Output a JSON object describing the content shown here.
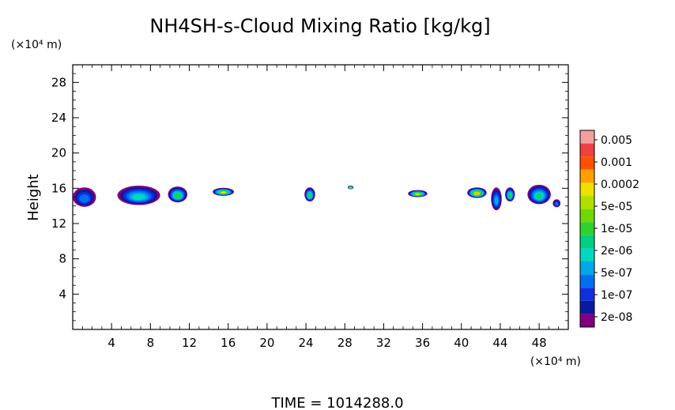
{
  "chart_data": {
    "type": "heatmap",
    "title": "NH4SH-s-Cloud Mixing Ratio [kg/kg]",
    "ylabel": "Height",
    "y_unit": "(×10⁴ m)",
    "x_unit": "(×10⁴ m)",
    "xlim": [
      0,
      51
    ],
    "ylim": [
      0,
      30
    ],
    "x_ticks": [
      4,
      8,
      12,
      16,
      20,
      24,
      28,
      32,
      36,
      40,
      44,
      48
    ],
    "y_ticks": [
      4,
      8,
      12,
      16,
      20,
      24,
      28
    ],
    "grid": false,
    "legend_position": "right",
    "colorbar": {
      "labels": [
        "0.005",
        "0.001",
        "0.0002",
        "5e-05",
        "1e-05",
        "2e-06",
        "5e-07",
        "1e-07",
        "2e-08"
      ],
      "colors": [
        "#f4a0a0",
        "#f04040",
        "#ff5000",
        "#ffa000",
        "#f0e000",
        "#b0e000",
        "#70d800",
        "#30d030",
        "#00d080",
        "#00d8c0",
        "#00a8e8",
        "#0070f0",
        "#1030e0",
        "#0a1aa0",
        "#800080"
      ]
    },
    "cloud_cells": [
      {
        "x": 1.2,
        "y": 15.0,
        "w": 2.4,
        "h": 2.2,
        "level": 4
      },
      {
        "x": 6.8,
        "y": 15.2,
        "w": 4.4,
        "h": 2.2,
        "level": 6
      },
      {
        "x": 10.8,
        "y": 15.3,
        "w": 2.0,
        "h": 1.8,
        "level": 8
      },
      {
        "x": 15.5,
        "y": 15.6,
        "w": 2.2,
        "h": 0.9,
        "level": 11
      },
      {
        "x": 24.4,
        "y": 15.3,
        "w": 1.1,
        "h": 1.6,
        "level": 8
      },
      {
        "x": 28.6,
        "y": 16.1,
        "w": 0.6,
        "h": 0.4,
        "level": 13
      },
      {
        "x": 35.5,
        "y": 15.4,
        "w": 2.0,
        "h": 0.8,
        "level": 11
      },
      {
        "x": 41.6,
        "y": 15.5,
        "w": 2.0,
        "h": 1.2,
        "level": 12
      },
      {
        "x": 43.6,
        "y": 14.8,
        "w": 1.1,
        "h": 2.6,
        "level": 5
      },
      {
        "x": 45.0,
        "y": 15.3,
        "w": 1.0,
        "h": 1.6,
        "level": 8
      },
      {
        "x": 48.0,
        "y": 15.3,
        "w": 2.4,
        "h": 2.2,
        "level": 7
      },
      {
        "x": 49.8,
        "y": 14.3,
        "w": 0.8,
        "h": 0.9,
        "level": 4
      }
    ]
  },
  "footer": {
    "time_label": "TIME =  1014288.0"
  }
}
